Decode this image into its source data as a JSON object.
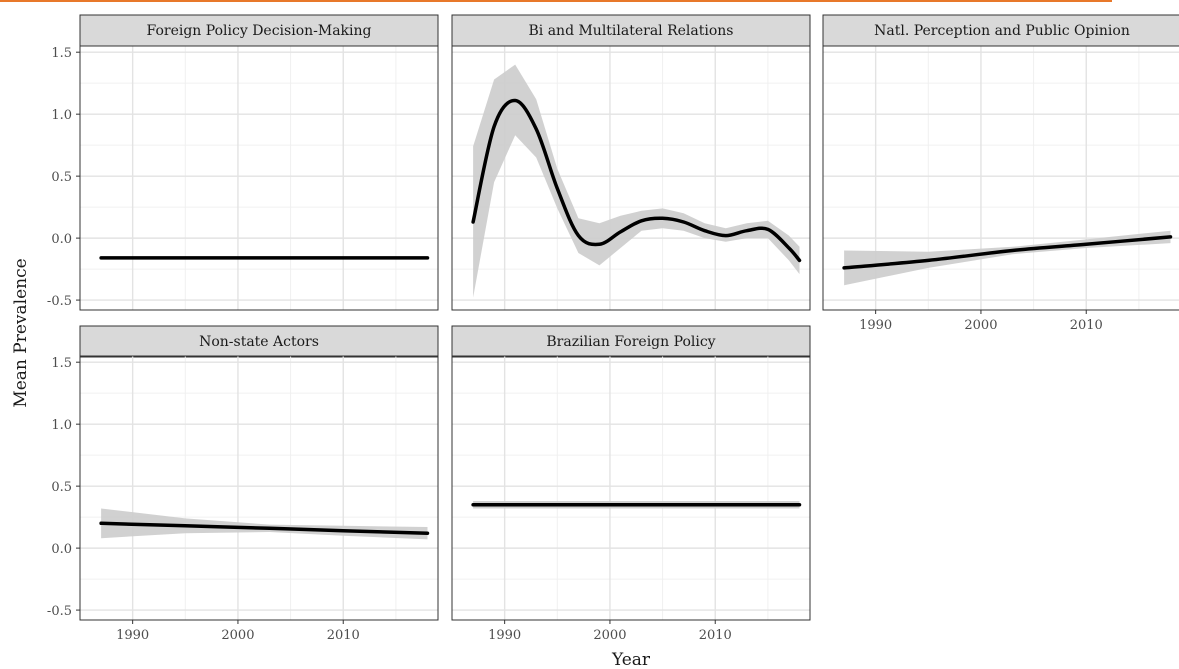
{
  "accent_color": "#e8782a",
  "chart_data": {
    "type": "line",
    "layout": "facet_wrap",
    "xlabel": "Year",
    "ylabel": "Mean Prevalence",
    "xlim": [
      1985,
      2019
    ],
    "ylim": [
      -0.58,
      1.55
    ],
    "x_ticks": [
      1990,
      2000,
      2010
    ],
    "y_ticks": [
      -0.5,
      0.0,
      0.5,
      1.0,
      1.5
    ],
    "y_tick_labels": [
      "-0.5",
      "0.0",
      "0.5",
      "1.0",
      "1.5"
    ],
    "x_tick_labels": [
      "1990",
      "2000",
      "2010"
    ],
    "grid": true,
    "line_color": "#000000",
    "band_color": "#cccccc",
    "strip_color": "#d9d9d9",
    "panels": [
      {
        "title": "Foreign Policy Decision-Making",
        "x": [
          1987,
          2018
        ],
        "y": [
          -0.16,
          -0.16
        ],
        "lower": [
          -0.17,
          -0.17
        ],
        "upper": [
          -0.15,
          -0.15
        ]
      },
      {
        "title": "Bi and Multilateral Relations",
        "x": [
          1987,
          1989,
          1991,
          1993,
          1995,
          1997,
          1999,
          2001,
          2003,
          2005,
          2007,
          2009,
          2011,
          2013,
          2015,
          2017,
          2018
        ],
        "y": [
          0.13,
          0.9,
          1.11,
          0.88,
          0.4,
          0.02,
          -0.05,
          0.05,
          0.14,
          0.16,
          0.13,
          0.06,
          0.02,
          0.06,
          0.07,
          -0.08,
          -0.18
        ],
        "lower": [
          -0.48,
          0.45,
          0.83,
          0.65,
          0.24,
          -0.12,
          -0.22,
          -0.08,
          0.06,
          0.08,
          0.06,
          0.0,
          -0.03,
          0.0,
          0.0,
          -0.18,
          -0.29
        ],
        "upper": [
          0.74,
          1.28,
          1.4,
          1.12,
          0.56,
          0.16,
          0.12,
          0.18,
          0.22,
          0.24,
          0.2,
          0.12,
          0.08,
          0.12,
          0.14,
          0.02,
          -0.07
        ]
      },
      {
        "title": "Natl. Perception and Public Opinion",
        "x": [
          1987,
          1995,
          2003,
          2010,
          2018
        ],
        "y": [
          -0.24,
          -0.18,
          -0.1,
          -0.05,
          0.01
        ],
        "lower": [
          -0.38,
          -0.24,
          -0.13,
          -0.08,
          -0.04
        ],
        "upper": [
          -0.1,
          -0.11,
          -0.07,
          -0.01,
          0.06
        ]
      },
      {
        "title": "Non-state Actors",
        "x": [
          1987,
          1995,
          2003,
          2010,
          2018
        ],
        "y": [
          0.2,
          0.18,
          0.16,
          0.14,
          0.12
        ],
        "lower": [
          0.08,
          0.12,
          0.13,
          0.1,
          0.07
        ],
        "upper": [
          0.32,
          0.24,
          0.19,
          0.18,
          0.17
        ]
      },
      {
        "title": "Brazilian Foreign Policy",
        "x": [
          1987,
          2018
        ],
        "y": [
          0.35,
          0.35
        ],
        "lower": [
          0.32,
          0.32
        ],
        "upper": [
          0.38,
          0.38
        ]
      }
    ]
  }
}
